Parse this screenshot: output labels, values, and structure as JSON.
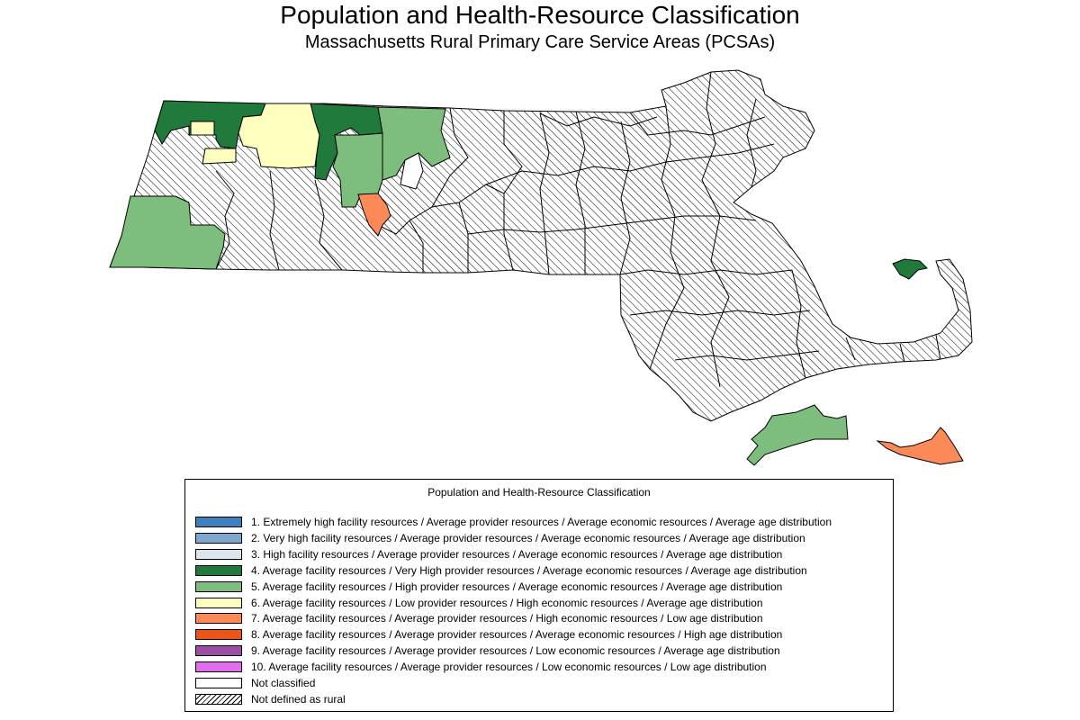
{
  "title": "Population and Health-Resource Classification",
  "subtitle": "Massachusetts Rural Primary Care Service Areas (PCSAs)",
  "colors": {
    "extremely_high_facility": "#3d7fbf",
    "very_high_facility": "#7ea7cf",
    "high_facility": "#dbe5ee",
    "very_high_provider": "#1f7a3b",
    "high_provider": "#7dbd7d",
    "low_provider": "#ffffbf",
    "high_economic_low_age": "#fb8a58",
    "high_age": "#e8561a",
    "low_economic_avg_age": "#9a4fa3",
    "low_economic_low_age": "#e06de9",
    "not_classified": "#ffffff",
    "boundary": "#000000"
  },
  "map": {
    "regions": [
      {
        "id": "state-mainland",
        "category": "Not defined as rural"
      },
      {
        "id": "cape-cod",
        "category": "Not defined as rural"
      },
      {
        "id": "nw-berkshire-north-adams",
        "category": "4. Average facility resources / Very High provider resources / Average economic resources / Average age distribution"
      },
      {
        "id": "franklin-north",
        "category": "4. Average facility resources / Very High provider resources / Average economic resources / Average age distribution"
      },
      {
        "id": "provincetown",
        "category": "4. Average facility resources / Very High provider resources / Average economic resources / Average age distribution"
      },
      {
        "id": "southern-berkshire",
        "category": "5. Average facility resources / High provider resources / Average economic resources / Average age distribution"
      },
      {
        "id": "north-quabbin",
        "category": "5. Average facility resources / High provider resources / Average economic resources / Average age distribution"
      },
      {
        "id": "franklin-central",
        "category": "5. Average facility resources / High provider resources / Average economic resources / Average age distribution"
      },
      {
        "id": "marthas-vineyard",
        "category": "5. Average facility resources / High provider resources / Average economic resources / Average age distribution"
      },
      {
        "id": "western-franklin",
        "category": "6. Average facility resources / Low provider resources / High economic resources / Average age distribution"
      },
      {
        "id": "berkshire-small",
        "category": "6. Average facility resources / Low provider resources / High economic resources / Average age distribution"
      },
      {
        "id": "amherst-area",
        "category": "7. Average facility resources / Average provider resources / High economic resources / Low age distribution"
      },
      {
        "id": "nantucket",
        "category": "7. Average facility resources / Average provider resources / High economic resources / Low age distribution"
      },
      {
        "id": "unclassified-small",
        "category": "Not classified"
      }
    ]
  },
  "legend": {
    "title": "Population and Health-Resource Classification",
    "items": [
      {
        "label": "1. Extremely high facility resources / Average provider resources / Average economic resources / Average age distribution",
        "color": "#3d7fbf",
        "pattern": "solid"
      },
      {
        "label": "2. Very high facility resources / Average provider resources / Average economic resources / Average age distribution",
        "color": "#7ea7cf",
        "pattern": "solid"
      },
      {
        "label": "3. High facility resources / Average provider resources / Average economic resources / Average age distribution",
        "color": "#dbe5ee",
        "pattern": "solid"
      },
      {
        "label": "4. Average facility resources / Very High provider resources / Average economic resources / Average age distribution",
        "color": "#1f7a3b",
        "pattern": "solid"
      },
      {
        "label": "5. Average facility resources / High provider resources / Average economic resources / Average age distribution",
        "color": "#7dbd7d",
        "pattern": "solid"
      },
      {
        "label": "6. Average facility resources / Low provider resources / High economic resources / Average age distribution",
        "color": "#ffffbf",
        "pattern": "solid"
      },
      {
        "label": "7. Average facility resources / Average provider resources / High economic resources / Low age distribution",
        "color": "#fb8a58",
        "pattern": "solid"
      },
      {
        "label": "8. Average facility resources / Average provider resources / Average economic resources / High age distribution",
        "color": "#e8561a",
        "pattern": "solid"
      },
      {
        "label": "9. Average facility resources / Average provider resources / Low economic resources / Average age distribution",
        "color": "#9a4fa3",
        "pattern": "solid"
      },
      {
        "label": "10. Average facility resources / Average provider resources / Low economic resources / Low age distribution",
        "color": "#e06de9",
        "pattern": "solid"
      },
      {
        "label": "Not classified",
        "color": "#ffffff",
        "pattern": "solid"
      },
      {
        "label": "Not defined as rural",
        "color": "#ffffff",
        "pattern": "hatch"
      }
    ]
  }
}
